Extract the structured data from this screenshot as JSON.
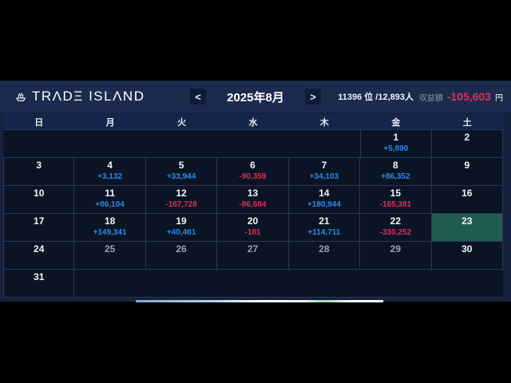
{
  "brand": {
    "name": "TRΛDΞ ISLΛND",
    "logo_icon": "ship-icon"
  },
  "header": {
    "prev_label": "<",
    "next_label": ">",
    "month_label": "2025年8月",
    "rank_text": "11396 位 /12,893人",
    "profit_label": "収益額",
    "profit_value": "-105,603",
    "profit_unit": "円"
  },
  "colors": {
    "positive": "#2e8ae6",
    "negative": "#dd2e57",
    "today_background": "#1e5d4f",
    "grid_line": "#263654"
  },
  "calendar": {
    "weekdays": [
      "日",
      "月",
      "火",
      "水",
      "木",
      "金",
      "土"
    ],
    "weeks": [
      [
        {
          "ghost": true
        },
        {
          "ghost": true
        },
        {
          "ghost": true
        },
        {
          "ghost": true
        },
        {
          "ghost": true
        },
        {
          "day": "1",
          "value": "+5,890"
        },
        {
          "day": "2"
        }
      ],
      [
        {
          "day": "3"
        },
        {
          "day": "4",
          "value": "+3,132"
        },
        {
          "day": "5",
          "value": "+33,944"
        },
        {
          "day": "6",
          "value": "-90,359"
        },
        {
          "day": "7",
          "value": "+34,103"
        },
        {
          "day": "8",
          "value": "+86,352"
        },
        {
          "day": "9"
        }
      ],
      [
        {
          "day": "10"
        },
        {
          "day": "11",
          "value": "+86,104"
        },
        {
          "day": "12",
          "value": "-167,728"
        },
        {
          "day": "13",
          "value": "-86,684"
        },
        {
          "day": "14",
          "value": "+180,944"
        },
        {
          "day": "15",
          "value": "-165,381"
        },
        {
          "day": "16"
        }
      ],
      [
        {
          "day": "17"
        },
        {
          "day": "18",
          "value": "+149,341"
        },
        {
          "day": "19",
          "value": "+40,461"
        },
        {
          "day": "20",
          "value": "-181"
        },
        {
          "day": "21",
          "value": "+114,711"
        },
        {
          "day": "22",
          "value": "-330,252"
        },
        {
          "day": "23",
          "today": true
        }
      ],
      [
        {
          "day": "24"
        },
        {
          "day": "25",
          "dim": true
        },
        {
          "day": "26",
          "dim": true
        },
        {
          "day": "27",
          "dim": true
        },
        {
          "day": "28",
          "dim": true
        },
        {
          "day": "29",
          "dim": true
        },
        {
          "day": "30"
        }
      ],
      [
        {
          "day": "31"
        },
        {
          "ghost": true
        },
        {
          "ghost": true
        },
        {
          "ghost": true
        },
        {
          "ghost": true
        },
        {
          "ghost": true
        },
        {
          "ghost": true
        }
      ]
    ]
  }
}
